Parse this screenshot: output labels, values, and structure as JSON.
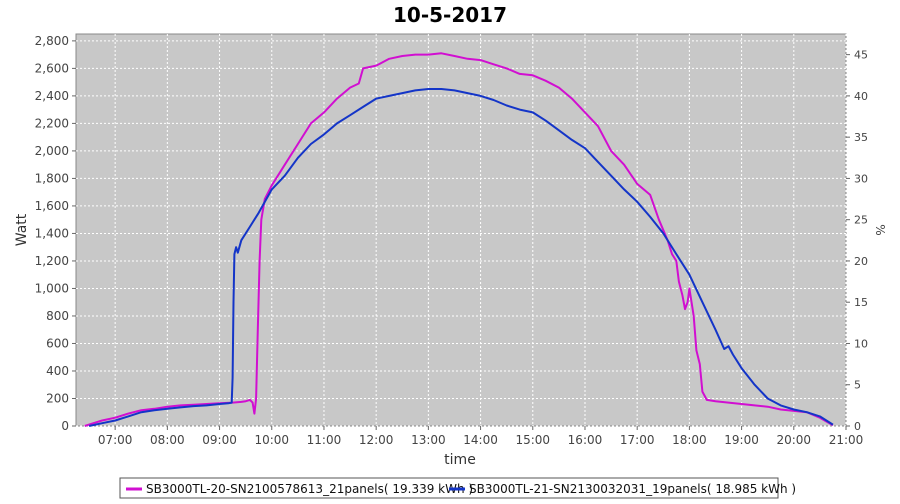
{
  "chart_data": {
    "type": "line",
    "title": "10-5-2017",
    "xlabel": "time",
    "ylabel": "Watt",
    "y2label": "%",
    "xlim": [
      "06:15",
      "21:00"
    ],
    "ylim": [
      0,
      2850
    ],
    "y2lim": [
      0,
      47.5
    ],
    "x_ticks": [
      "07:00",
      "08:00",
      "09:00",
      "10:00",
      "11:00",
      "12:00",
      "13:00",
      "14:00",
      "15:00",
      "16:00",
      "17:00",
      "18:00",
      "19:00",
      "20:00",
      "21:00"
    ],
    "y_ticks": [
      "0",
      "200",
      "400",
      "600",
      "800",
      "1,000",
      "1,200",
      "1,400",
      "1,600",
      "1,800",
      "2,000",
      "2,200",
      "2,400",
      "2,600",
      "2,800"
    ],
    "y2_ticks": [
      "0",
      "5",
      "10",
      "15",
      "20",
      "25",
      "30",
      "35",
      "40",
      "45"
    ],
    "grid": true,
    "legend_position": "bottom",
    "colors": {
      "plot_background": "#c8c8c8",
      "grid": "#ffffff"
    },
    "series": [
      {
        "name": "SB3000TL-20-SN2100578613_21panels( 19.339 kWh )",
        "color": "#d10fd1",
        "points": [
          [
            "06:25",
            0
          ],
          [
            "06:35",
            20
          ],
          [
            "06:45",
            40
          ],
          [
            "07:00",
            60
          ],
          [
            "07:15",
            90
          ],
          [
            "07:30",
            115
          ],
          [
            "07:45",
            125
          ],
          [
            "08:00",
            140
          ],
          [
            "08:15",
            150
          ],
          [
            "08:30",
            155
          ],
          [
            "08:45",
            160
          ],
          [
            "09:00",
            165
          ],
          [
            "09:15",
            170
          ],
          [
            "09:25",
            175
          ],
          [
            "09:30",
            180
          ],
          [
            "09:35",
            190
          ],
          [
            "09:38",
            170
          ],
          [
            "09:40",
            90
          ],
          [
            "09:42",
            200
          ],
          [
            "09:44",
            700
          ],
          [
            "09:46",
            1200
          ],
          [
            "09:48",
            1500
          ],
          [
            "09:52",
            1650
          ],
          [
            "10:00",
            1750
          ],
          [
            "10:15",
            1900
          ],
          [
            "10:30",
            2050
          ],
          [
            "10:45",
            2200
          ],
          [
            "11:00",
            2280
          ],
          [
            "11:15",
            2380
          ],
          [
            "11:30",
            2460
          ],
          [
            "11:40",
            2490
          ],
          [
            "11:45",
            2600
          ],
          [
            "12:00",
            2620
          ],
          [
            "12:15",
            2670
          ],
          [
            "12:30",
            2690
          ],
          [
            "12:45",
            2700
          ],
          [
            "13:00",
            2700
          ],
          [
            "13:15",
            2710
          ],
          [
            "13:30",
            2690
          ],
          [
            "13:45",
            2670
          ],
          [
            "14:00",
            2660
          ],
          [
            "14:15",
            2630
          ],
          [
            "14:30",
            2600
          ],
          [
            "14:45",
            2560
          ],
          [
            "15:00",
            2550
          ],
          [
            "15:15",
            2510
          ],
          [
            "15:30",
            2460
          ],
          [
            "15:45",
            2380
          ],
          [
            "16:00",
            2280
          ],
          [
            "16:15",
            2180
          ],
          [
            "16:30",
            2000
          ],
          [
            "16:45",
            1900
          ],
          [
            "17:00",
            1760
          ],
          [
            "17:15",
            1680
          ],
          [
            "17:25",
            1500
          ],
          [
            "17:35",
            1350
          ],
          [
            "17:40",
            1250
          ],
          [
            "17:45",
            1200
          ],
          [
            "17:48",
            1050
          ],
          [
            "17:52",
            950
          ],
          [
            "17:55",
            850
          ],
          [
            "17:58",
            900
          ],
          [
            "18:00",
            1000
          ],
          [
            "18:05",
            800
          ],
          [
            "18:08",
            550
          ],
          [
            "18:12",
            450
          ],
          [
            "18:15",
            250
          ],
          [
            "18:20",
            190
          ],
          [
            "18:30",
            180
          ],
          [
            "18:45",
            170
          ],
          [
            "19:00",
            160
          ],
          [
            "19:15",
            150
          ],
          [
            "19:30",
            140
          ],
          [
            "19:45",
            120
          ],
          [
            "20:00",
            110
          ],
          [
            "20:15",
            100
          ],
          [
            "20:30",
            60
          ],
          [
            "20:45",
            5
          ]
        ]
      },
      {
        "name": "SB3000TL-21-SN2130032031_19panels( 18.985 kWh )",
        "color": "#1435c8",
        "points": [
          [
            "06:30",
            0
          ],
          [
            "06:45",
            20
          ],
          [
            "07:00",
            40
          ],
          [
            "07:15",
            70
          ],
          [
            "07:30",
            100
          ],
          [
            "07:45",
            115
          ],
          [
            "08:00",
            125
          ],
          [
            "08:15",
            135
          ],
          [
            "08:30",
            145
          ],
          [
            "08:45",
            150
          ],
          [
            "09:00",
            160
          ],
          [
            "09:10",
            165
          ],
          [
            "09:14",
            170
          ],
          [
            "09:15",
            350
          ],
          [
            "09:16",
            900
          ],
          [
            "09:17",
            1250
          ],
          [
            "09:19",
            1300
          ],
          [
            "09:21",
            1260
          ],
          [
            "09:25",
            1350
          ],
          [
            "09:35",
            1450
          ],
          [
            "09:45",
            1550
          ],
          [
            "10:00",
            1720
          ],
          [
            "10:15",
            1820
          ],
          [
            "10:30",
            1950
          ],
          [
            "10:45",
            2050
          ],
          [
            "11:00",
            2120
          ],
          [
            "11:15",
            2200
          ],
          [
            "11:30",
            2260
          ],
          [
            "11:45",
            2320
          ],
          [
            "12:00",
            2380
          ],
          [
            "12:15",
            2400
          ],
          [
            "12:30",
            2420
          ],
          [
            "12:45",
            2440
          ],
          [
            "13:00",
            2450
          ],
          [
            "13:15",
            2450
          ],
          [
            "13:30",
            2440
          ],
          [
            "13:45",
            2420
          ],
          [
            "14:00",
            2400
          ],
          [
            "14:15",
            2370
          ],
          [
            "14:30",
            2330
          ],
          [
            "14:45",
            2300
          ],
          [
            "15:00",
            2280
          ],
          [
            "15:15",
            2220
          ],
          [
            "15:30",
            2150
          ],
          [
            "15:45",
            2080
          ],
          [
            "16:00",
            2020
          ],
          [
            "16:15",
            1920
          ],
          [
            "16:30",
            1820
          ],
          [
            "16:45",
            1720
          ],
          [
            "17:00",
            1630
          ],
          [
            "17:15",
            1520
          ],
          [
            "17:30",
            1400
          ],
          [
            "17:45",
            1250
          ],
          [
            "18:00",
            1100
          ],
          [
            "18:15",
            900
          ],
          [
            "18:30",
            700
          ],
          [
            "18:40",
            560
          ],
          [
            "18:45",
            580
          ],
          [
            "18:50",
            520
          ],
          [
            "19:00",
            420
          ],
          [
            "19:15",
            300
          ],
          [
            "19:30",
            200
          ],
          [
            "19:45",
            150
          ],
          [
            "20:00",
            120
          ],
          [
            "20:15",
            100
          ],
          [
            "20:30",
            70
          ],
          [
            "20:45",
            10
          ]
        ]
      }
    ]
  }
}
